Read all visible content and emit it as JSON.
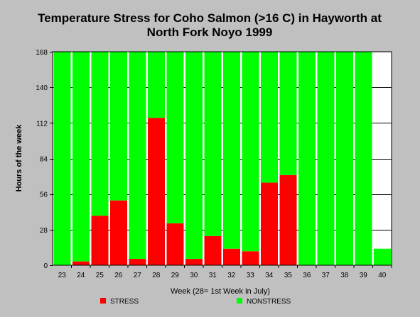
{
  "chart_data": {
    "type": "bar",
    "stacked": true,
    "title_lines": [
      "Temperature Stress for Coho Salmon (>16 C) in Hayworth at",
      "North Fork Noyo 1999"
    ],
    "xlabel": "Week (28= 1st Week in July)",
    "ylabel": "Hours of the week",
    "ylim": [
      0,
      168
    ],
    "yticks": [
      0,
      28,
      56,
      84,
      112,
      140,
      168
    ],
    "grid": true,
    "legend_placement": "bottom",
    "categories": [
      "23",
      "24",
      "25",
      "26",
      "27",
      "28",
      "29",
      "30",
      "31",
      "32",
      "33",
      "34",
      "35",
      "36",
      "37",
      "38",
      "39",
      "40"
    ],
    "series": [
      {
        "name": "STRESS",
        "color": "#ff0000",
        "values": [
          0,
          3,
          39,
          51,
          5,
          116,
          33,
          5,
          23,
          13,
          11,
          65,
          71,
          0,
          0,
          0,
          0,
          0
        ]
      },
      {
        "name": "NONSTRESS",
        "color": "#00ff00",
        "values": [
          168,
          165,
          129,
          117,
          163,
          52,
          135,
          163,
          145,
          155,
          157,
          103,
          97,
          168,
          168,
          168,
          168,
          13
        ]
      }
    ]
  }
}
